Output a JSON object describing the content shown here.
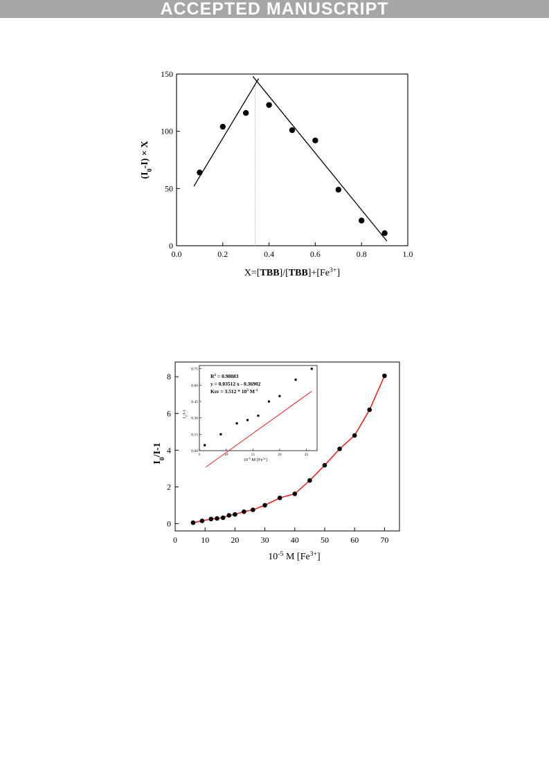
{
  "header": {
    "banner": "ACCEPTED MANUSCRIPT"
  },
  "chart_data": [
    {
      "type": "scatter",
      "title": "",
      "xlabel_parts": [
        "X=[",
        "TBB",
        "]/[",
        "TBB",
        "]+[Fe",
        "3+",
        "]"
      ],
      "ylabel_parts": [
        "(I",
        "0",
        "-I) × X"
      ],
      "xlim": [
        0.0,
        1.0
      ],
      "ylim": [
        0,
        150
      ],
      "xticks": [
        0.0,
        0.2,
        0.4,
        0.6,
        0.8,
        1.0
      ],
      "xtick_labels": [
        "0.0",
        "0.2",
        "0.4",
        "0.6",
        "0.8",
        "1.0"
      ],
      "yticks": [
        0,
        50,
        100,
        150
      ],
      "ytick_labels": [
        "0",
        "50",
        "100",
        "150"
      ],
      "x": [
        0.1,
        0.2,
        0.3,
        0.4,
        0.5,
        0.6,
        0.7,
        0.8,
        0.9
      ],
      "y": [
        64,
        104,
        116,
        123,
        101,
        92,
        49,
        22,
        11
      ],
      "fit_lines": [
        {
          "x": [
            0.075,
            0.355
          ],
          "y": [
            52,
            146
          ]
        },
        {
          "x": [
            0.33,
            0.91
          ],
          "y": [
            148,
            4
          ]
        }
      ],
      "guide_line_x": 0.34,
      "grid": false,
      "colors": {
        "points": "#000000",
        "lines": "#000000",
        "guide": "#aaaaaa"
      }
    },
    {
      "type": "line",
      "title": "",
      "xlabel_parts": [
        "10",
        "-5",
        " M [Fe",
        "3+",
        "]"
      ],
      "ylabel_parts": [
        "I",
        "0",
        "/I-1"
      ],
      "xlim": [
        0,
        75
      ],
      "ylim": [
        -0.4,
        8.8
      ],
      "xticks": [
        0,
        10,
        20,
        30,
        40,
        50,
        60,
        70
      ],
      "xtick_labels": [
        "0",
        "10",
        "20",
        "30",
        "40",
        "50",
        "60",
        "70"
      ],
      "yticks": [
        0,
        2,
        4,
        6,
        8
      ],
      "ytick_labels": [
        "0",
        "2",
        "4",
        "6",
        "8"
      ],
      "x": [
        6,
        9,
        12,
        14,
        16,
        18,
        20,
        23,
        26,
        30,
        35,
        40,
        45,
        50,
        55,
        60,
        65,
        70
      ],
      "y": [
        0.05,
        0.15,
        0.25,
        0.28,
        0.32,
        0.45,
        0.5,
        0.65,
        0.75,
        1.0,
        1.4,
        1.62,
        2.35,
        3.18,
        4.07,
        4.8,
        6.2,
        8.05
      ],
      "grid": false,
      "colors": {
        "points": "#000000",
        "line": "#e8231e"
      },
      "inset": {
        "type": "scatter",
        "annotations": [
          {
            "parts": [
              "R",
              "2",
              " = 0.98083"
            ]
          },
          {
            "parts": [
              "y = 0.03512 x - 0.36902"
            ]
          },
          {
            "parts": [
              "Ksv = 3.512 * 10",
              "3",
              " M",
              "-1"
            ]
          }
        ],
        "xlabel_parts": [
          "10",
          "-5",
          " M [Fe",
          "3+",
          "]"
        ],
        "ylabel_parts": [
          "I",
          "0",
          "/I-1"
        ],
        "xlim": [
          5,
          27
        ],
        "ylim": [
          0.0,
          0.78
        ],
        "xticks": [
          5,
          10,
          15,
          20,
          25
        ],
        "xtick_labels": [
          "5",
          "10",
          "15",
          "20",
          "25"
        ],
        "yticks": [
          0.0,
          0.15,
          0.3,
          0.45,
          0.6,
          0.75
        ],
        "ytick_labels": [
          "0.00",
          "0.15",
          "0.30",
          "0.45",
          "0.60",
          "0.75"
        ],
        "x": [
          6,
          9,
          12,
          14,
          16,
          18,
          20,
          23,
          26
        ],
        "y": [
          0.05,
          0.15,
          0.25,
          0.28,
          0.32,
          0.45,
          0.5,
          0.65,
          0.75
        ],
        "fit": {
          "slope": 0.03512,
          "intercept": -0.36902,
          "x_range": [
            6.2,
            26
          ]
        },
        "colors": {
          "points": "#000000",
          "line": "#e8231e"
        }
      }
    }
  ]
}
